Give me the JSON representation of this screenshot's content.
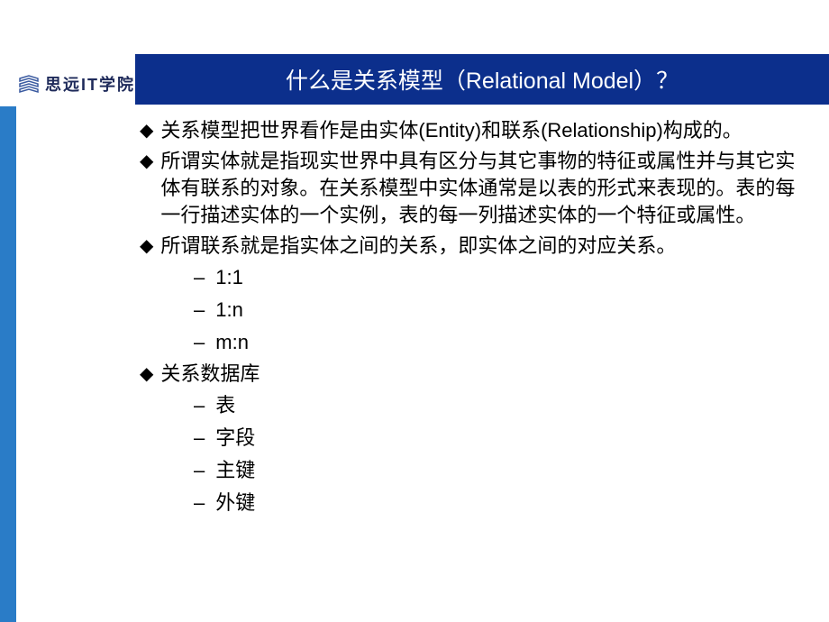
{
  "colors": {
    "title_bar_bg": "#0c2f8c",
    "left_bar_bg": "#2a7cc7",
    "title_text": "#ffffff",
    "body_text": "#000000",
    "logo_text": "#1e2a5a",
    "logo_icon_stroke": "#3a5aa0",
    "background": "#ffffff"
  },
  "layout": {
    "slide_width": 920,
    "slide_height": 690,
    "title_fontsize": 25,
    "body_fontsize": 22,
    "sub_fontsize": 22,
    "line_height": 30
  },
  "logo": {
    "text": "思远IT学院"
  },
  "title": "什么是关系模型（Relational Model）？",
  "bullets": [
    {
      "text": "关系模型把世界看作是由实体(Entity)和联系(Relationship)构成的。",
      "subs": []
    },
    {
      "text": "所谓实体就是指现实世界中具有区分与其它事物的特征或属性并与其它实体有联系的对象。在关系模型中实体通常是以表的形式来表现的。表的每一行描述实体的一个实例，表的每一列描述实体的一个特征或属性。",
      "subs": []
    },
    {
      "text": "所谓联系就是指实体之间的关系，即实体之间的对应关系。",
      "subs": [
        "1:1",
        "1:n",
        "m:n"
      ]
    },
    {
      "text": "关系数据库",
      "subs": [
        "表",
        "字段",
        "主键",
        "外键"
      ]
    }
  ]
}
